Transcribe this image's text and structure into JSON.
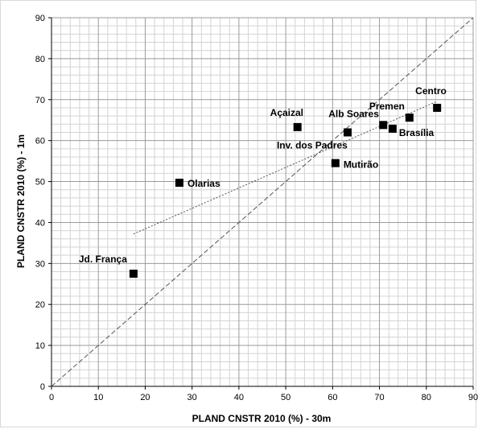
{
  "chart_data": {
    "type": "scatter",
    "title": "",
    "xlabel": "PLAND CNSTR 2010  (%)  - 30m",
    "ylabel": "PLAND CNSTR 2010  (%)  - 1m",
    "xlim": [
      0,
      90
    ],
    "ylim": [
      0,
      90
    ],
    "x_ticks": [
      0,
      10,
      20,
      30,
      40,
      50,
      60,
      70,
      80,
      90
    ],
    "y_ticks": [
      0,
      10,
      20,
      30,
      40,
      50,
      60,
      70,
      80,
      90
    ],
    "grid": true,
    "minor_grid_step": 2,
    "legend": "none",
    "marker": "square",
    "marker_color": "#000000",
    "points": [
      {
        "label": "Jd. França",
        "x": 17.5,
        "y": 27.5
      },
      {
        "label": "Olarias",
        "x": 27.3,
        "y": 49.7
      },
      {
        "label": "Açaizal",
        "x": 52.5,
        "y": 63.3
      },
      {
        "label": "Inv. dos Padres",
        "x": 63.2,
        "y": 62.0
      },
      {
        "label": "Mutirão",
        "x": 60.6,
        "y": 54.5
      },
      {
        "label": "Alb Soares",
        "x": 70.8,
        "y": 63.8
      },
      {
        "label": "Brasília",
        "x": 72.8,
        "y": 62.9
      },
      {
        "label": "Premen",
        "x": 76.4,
        "y": 65.6
      },
      {
        "label": "Centro",
        "x": 82.3,
        "y": 68.0
      }
    ],
    "reference_lines": [
      {
        "name": "1:1 line",
        "x": [
          0,
          90
        ],
        "y": [
          0,
          90
        ],
        "style": "dashed"
      },
      {
        "name": "trend",
        "x": [
          17.5,
          82.3
        ],
        "y": [
          37.2,
          69.6
        ],
        "style": "dotted"
      }
    ]
  }
}
